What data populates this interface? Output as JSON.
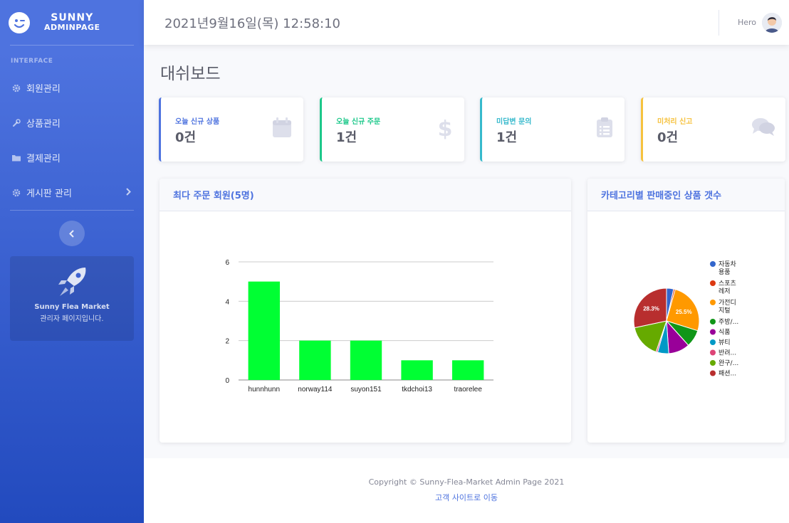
{
  "brand": {
    "line1": "SUNNY",
    "line2": "ADMINPAGE"
  },
  "sidebar": {
    "heading": "INTERFACE",
    "items": [
      {
        "label": "회원관리",
        "icon": "gear-icon"
      },
      {
        "label": "상품관리",
        "icon": "wrench-icon"
      },
      {
        "label": "결제관리",
        "icon": "folder-icon"
      },
      {
        "label": "게시판 관리",
        "icon": "gear-icon"
      }
    ],
    "promo": {
      "title": "Sunny Flea Market",
      "subtitle": "관리자 페이지입니다."
    }
  },
  "topbar": {
    "datetime": "2021년9월16일(목) 12:58:10",
    "user": "Hero"
  },
  "page_title": "대쉬보드",
  "cards": [
    {
      "label": "오늘 신규 상품",
      "value": "0건",
      "color": "#4e73df",
      "icon": "calendar-icon"
    },
    {
      "label": "오늘 신규 주문",
      "value": "1건",
      "color": "#1cc88a",
      "icon": "dollar-icon"
    },
    {
      "label": "미답변 문의",
      "value": "1건",
      "color": "#36b9cc",
      "icon": "clipboard-icon"
    },
    {
      "label": "미처리 신고",
      "value": "0건",
      "color": "#f6c23e",
      "icon": "comments-icon"
    }
  ],
  "panels": {
    "bar_title": "최다 주문 회원(5명)",
    "pie_title": "카테고리별 판매중인 상품 갯수"
  },
  "chart_data": [
    {
      "type": "bar",
      "categories": [
        "hunnhunn",
        "norway114",
        "suyon151",
        "tkdchoi13",
        "traorelee"
      ],
      "values": [
        5,
        2,
        2,
        1,
        1
      ],
      "ylim": [
        0,
        6
      ],
      "yticks": [
        0,
        2,
        4,
        6
      ],
      "grid": true,
      "color": "#00ff33"
    },
    {
      "type": "pie",
      "legend_position": "right",
      "slices": [
        {
          "label": "자동차용품",
          "legend": [
            "자동차",
            "용품"
          ],
          "value": 3.5,
          "color": "#3366cc"
        },
        {
          "label": "스포츠레저",
          "legend": [
            "스포츠",
            "레저"
          ],
          "value": 0.8,
          "color": "#dc3912"
        },
        {
          "label": "가전디지털",
          "legend": [
            "가전디",
            "지털"
          ],
          "value": 25.5,
          "color": "#ff9900",
          "shown": "25.5%"
        },
        {
          "label": "주방/...",
          "legend": [
            "주방/..."
          ],
          "value": 8.5,
          "color": "#109618"
        },
        {
          "label": "식품",
          "legend": [
            "식품"
          ],
          "value": 10.5,
          "color": "#990099"
        },
        {
          "label": "뷰티",
          "legend": [
            "뷰티"
          ],
          "value": 5.5,
          "color": "#0099c6"
        },
        {
          "label": "반려...",
          "legend": [
            "반려..."
          ],
          "value": 0.8,
          "color": "#dd4477"
        },
        {
          "label": "완구/...",
          "legend": [
            "완구/..."
          ],
          "value": 16.4,
          "color": "#66aa00"
        },
        {
          "label": "패션...",
          "legend": [
            "패션..."
          ],
          "value": 28.3,
          "color": "#b82e2e",
          "shown": "28.3%"
        }
      ]
    }
  ],
  "footer": {
    "copyright": "Copyright © Sunny-Flea-Market Admin Page 2021",
    "link": "고객 사이트로 이동"
  }
}
